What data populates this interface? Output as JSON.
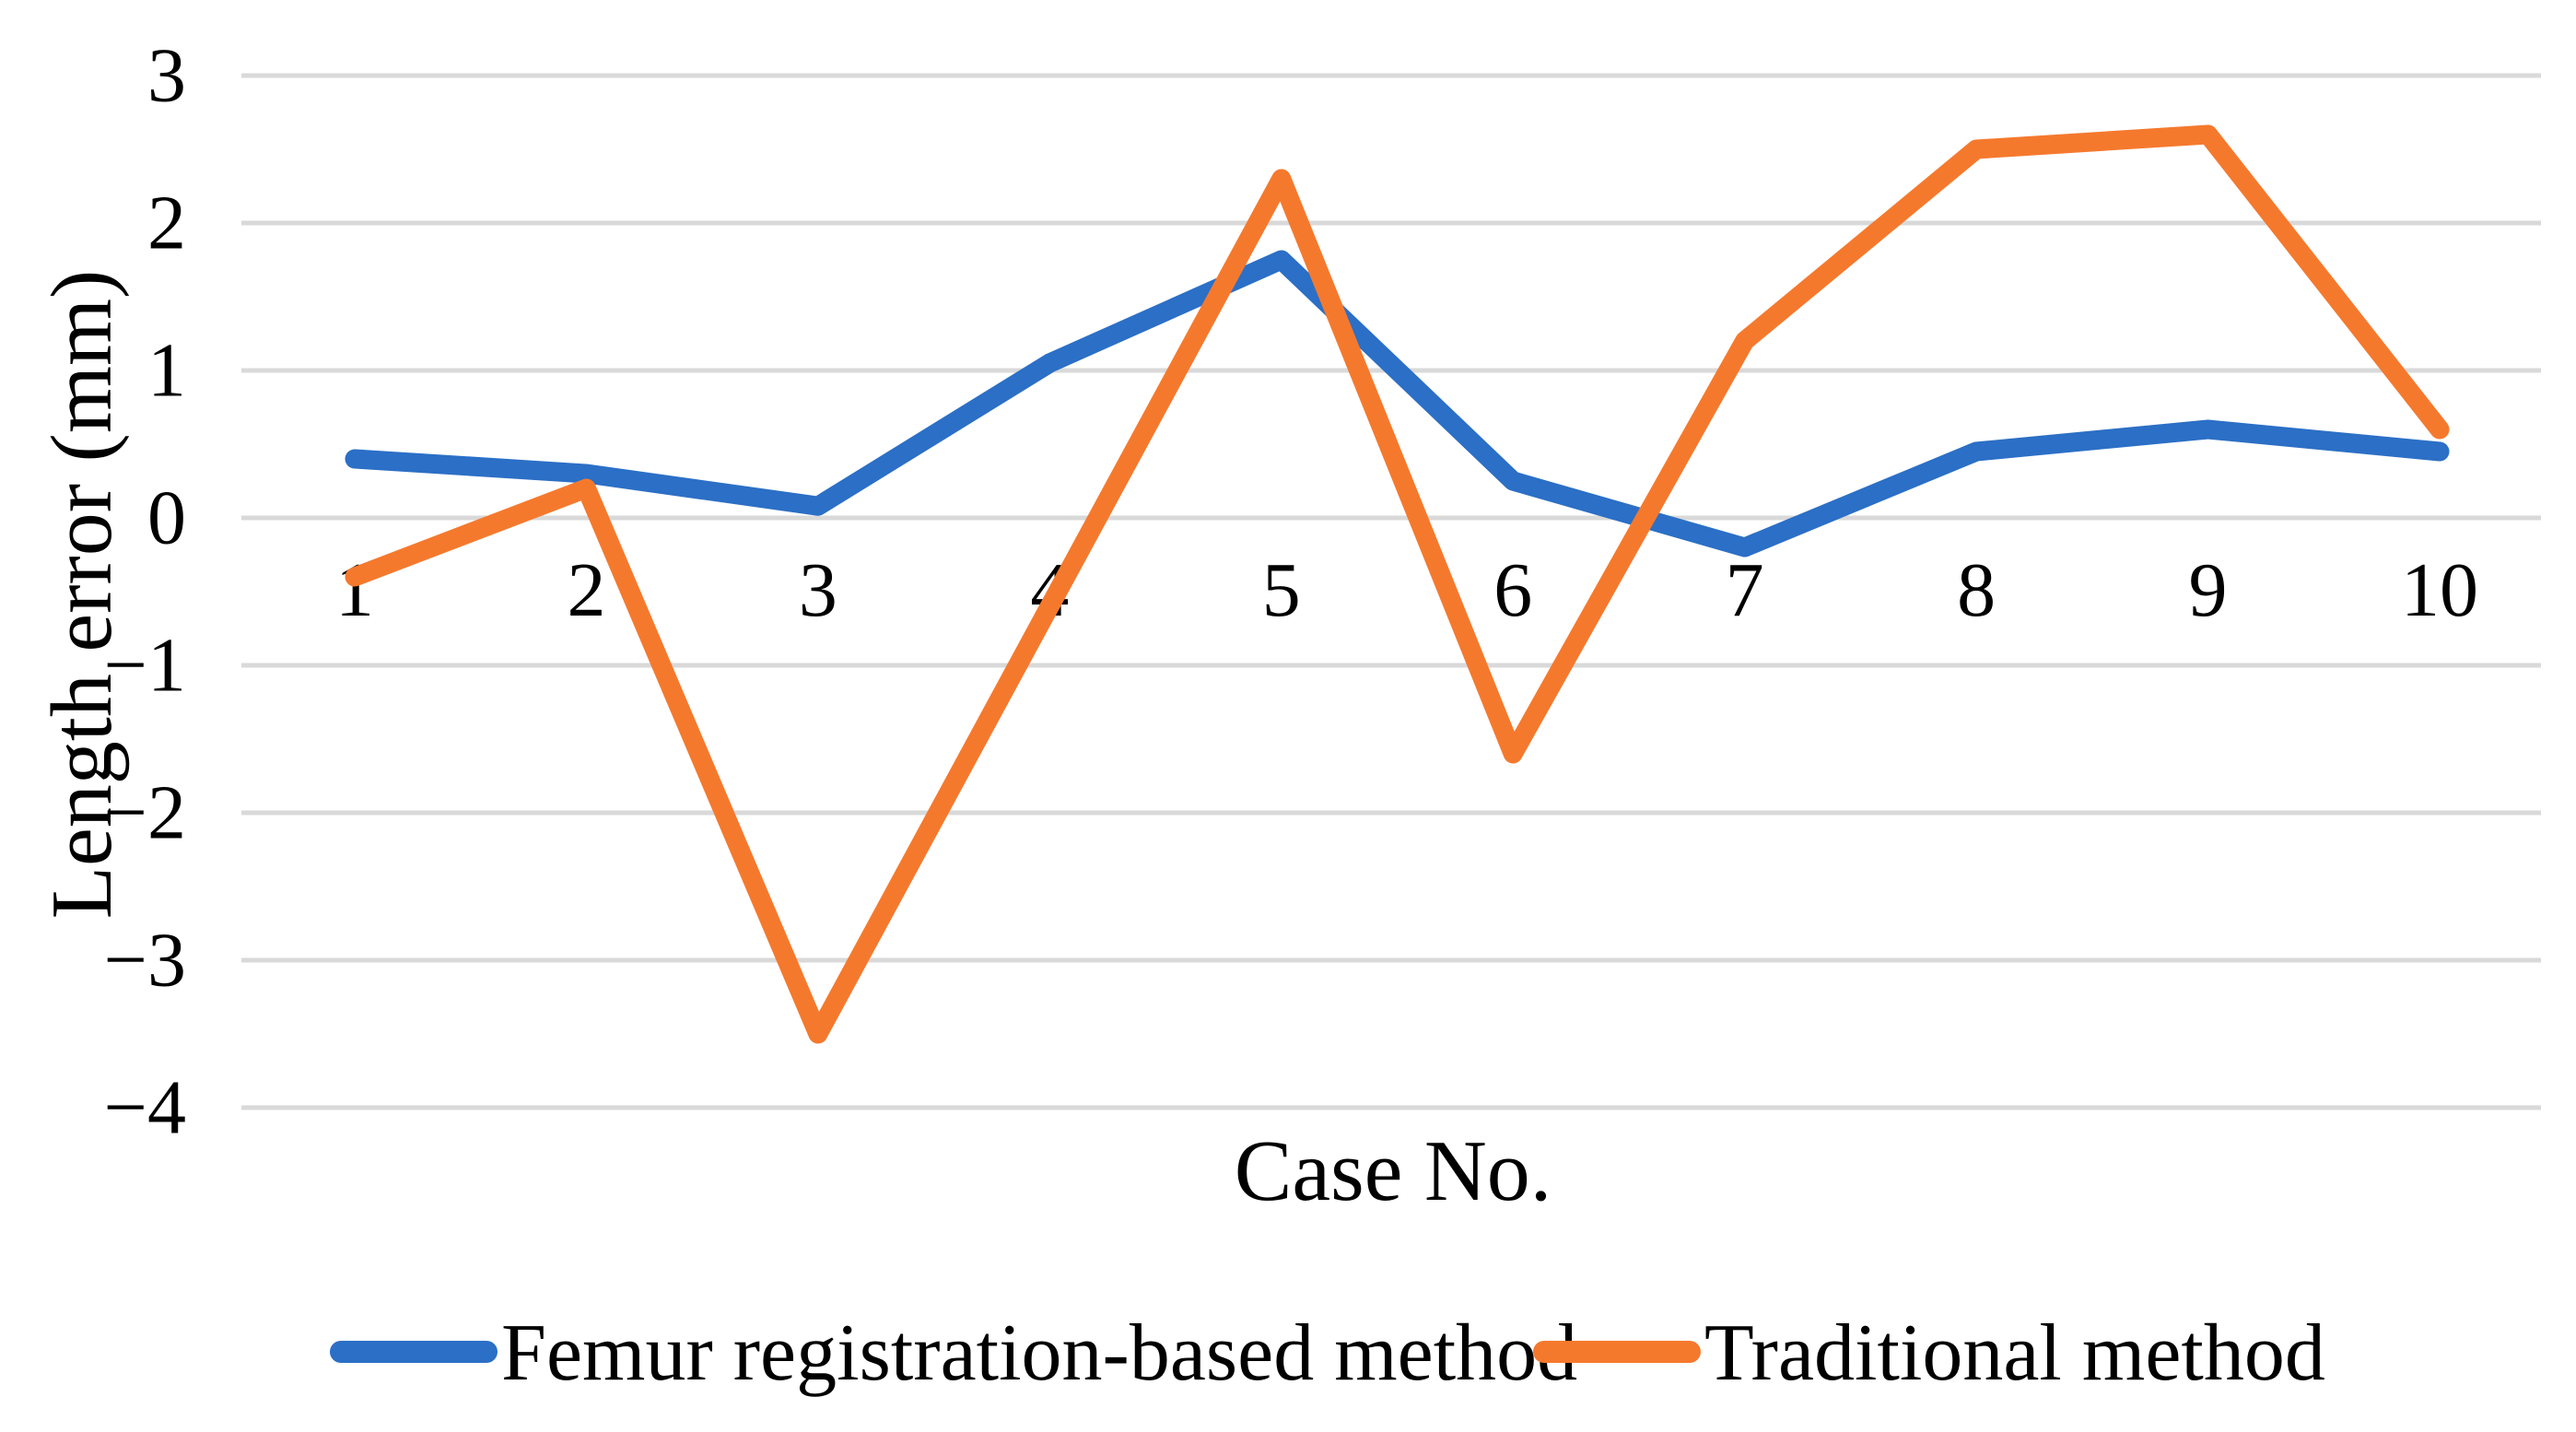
{
  "chart_data": {
    "type": "line",
    "title": "",
    "xlabel": "Case No.",
    "ylabel": "Length error (mm)",
    "categories": [
      "1",
      "2",
      "3",
      "4",
      "5",
      "6",
      "7",
      "8",
      "9",
      "10"
    ],
    "y_ticks": [
      3,
      2,
      1,
      0,
      -1,
      -2,
      -3,
      -4
    ],
    "y_tick_labels": [
      "3",
      "2",
      "1",
      "0",
      "−1",
      "−2",
      "−3",
      "−4"
    ],
    "ylim": [
      -4,
      3
    ],
    "grid": "horizontal-only",
    "gridline_color": "#D9D9D9",
    "legend_position": "bottom-center",
    "series": [
      {
        "name": "Femur registration-based method",
        "color": "#2B6FC6",
        "values": [
          0.4,
          0.3,
          0.08,
          1.05,
          1.75,
          0.25,
          -0.2,
          0.45,
          0.6,
          0.45
        ]
      },
      {
        "name": "Traditional method",
        "color": "#F5792D",
        "values": [
          -0.4,
          0.2,
          -3.5,
          -0.6,
          2.3,
          -1.6,
          1.2,
          2.5,
          2.6,
          0.6
        ]
      }
    ]
  },
  "style": {
    "background": "#FFFFFF",
    "text_color": "#000000",
    "gridline_color": "#D9D9D9",
    "series1_color": "#2B6FC6",
    "series2_color": "#F5792D"
  }
}
